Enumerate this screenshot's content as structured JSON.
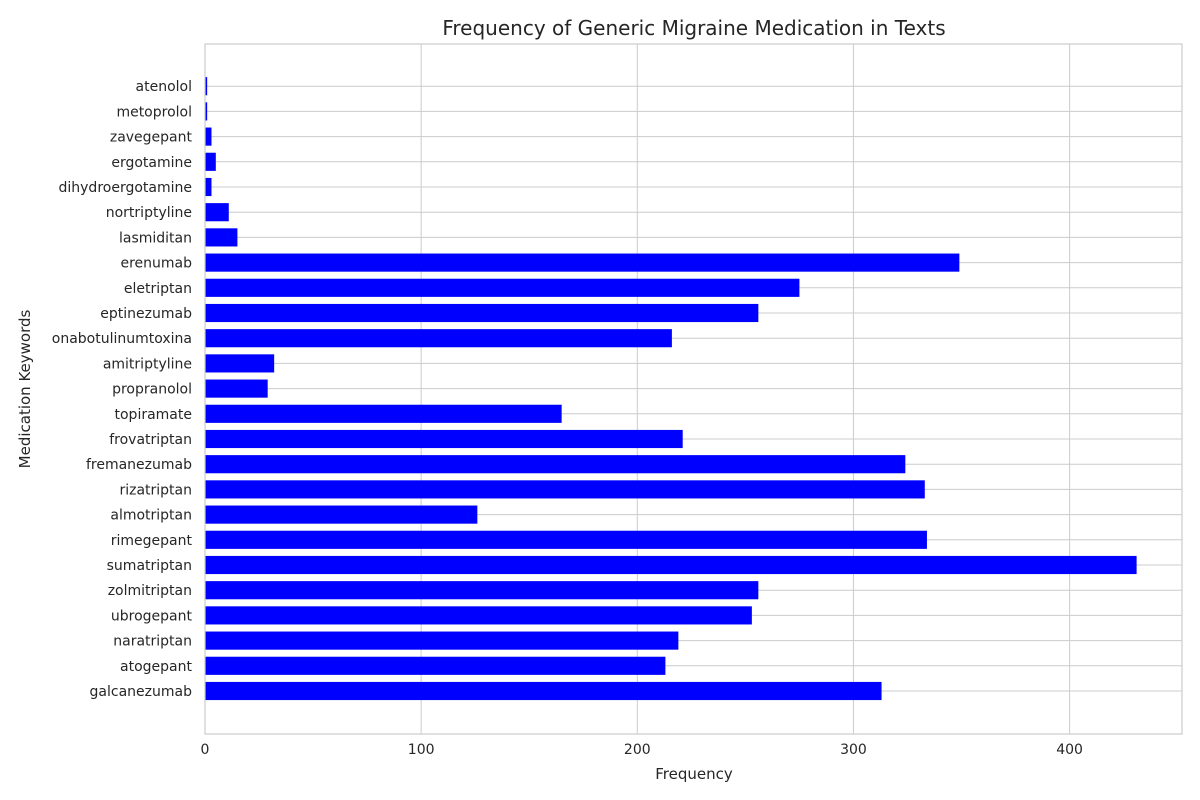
{
  "chart_data": {
    "type": "bar",
    "orientation": "horizontal",
    "title": "Frequency of Generic Migraine Medication in Texts",
    "xlabel": "Frequency",
    "ylabel": "Medication Keywords",
    "xlim": [
      0,
      452
    ],
    "xticks": [
      0,
      100,
      200,
      300,
      400
    ],
    "grid": true,
    "bar_color": "#0000ff",
    "categories": [
      "galcanezumab",
      "atogepant",
      "naratriptan",
      "ubrogepant",
      "zolmitriptan",
      "sumatriptan",
      "rimegepant",
      "almotriptan",
      "rizatriptan",
      "fremanezumab",
      "frovatriptan",
      "topiramate",
      "propranolol",
      "amitriptyline",
      "onabotulinumtoxina",
      "eptinezumab",
      "eletriptan",
      "erenumab",
      "lasmiditan",
      "nortriptyline",
      "dihydroergotamine",
      "ergotamine",
      "zavegepant",
      "metoprolol",
      "atenolol"
    ],
    "values": [
      313,
      213,
      219,
      253,
      256,
      431,
      334,
      126,
      333,
      324,
      221,
      165,
      29,
      32,
      216,
      256,
      275,
      349,
      15,
      11,
      3,
      5,
      3,
      1,
      1
    ]
  }
}
